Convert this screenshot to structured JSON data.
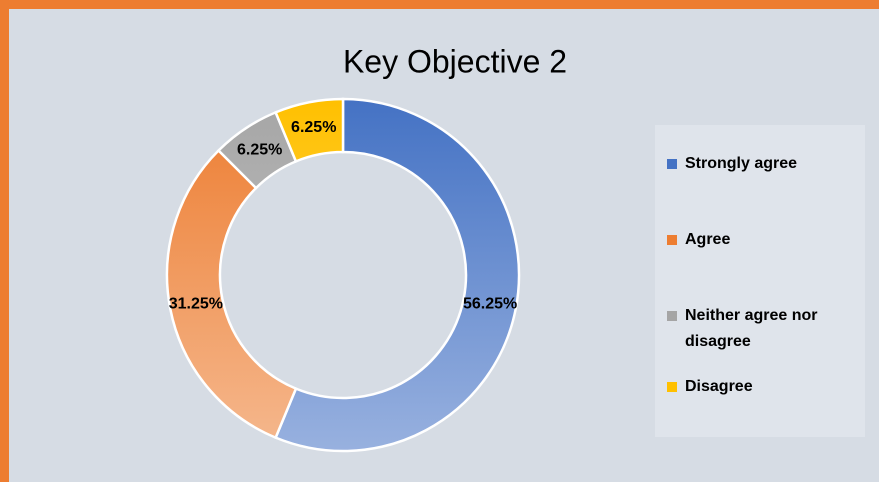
{
  "chart_data": {
    "type": "donut",
    "title": "Key Objective 2",
    "categories": [
      "Strongly agree",
      "Agree",
      "Neither agree nor disagree",
      "Disagree"
    ],
    "values": [
      56.25,
      31.25,
      6.25,
      6.25
    ],
    "value_labels": [
      "56.25%",
      "31.25%",
      "6.25%",
      "6.25%"
    ],
    "colors": [
      "#4472c4",
      "#ed7d31",
      "#a5a5a5",
      "#ffc000"
    ],
    "legend": "right"
  }
}
